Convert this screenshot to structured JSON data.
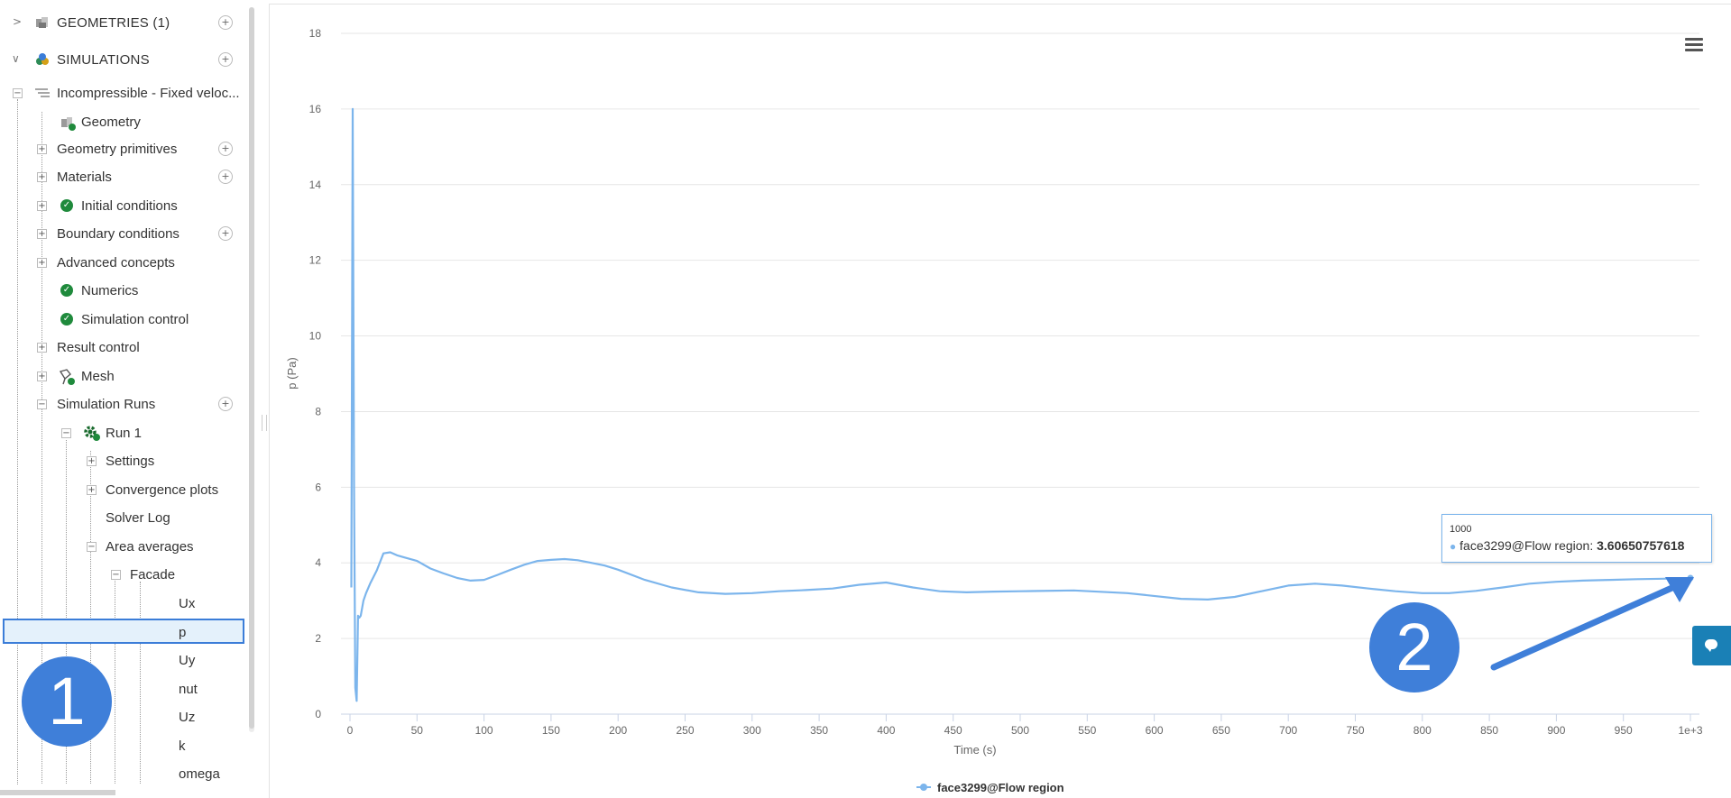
{
  "sidebar": {
    "geometries_label": "GEOMETRIES (1)",
    "simulations_label": "SIMULATIONS",
    "simulation_name": "Incompressible - Fixed veloc...",
    "items": {
      "geometry": "Geometry",
      "geometry_primitives": "Geometry primitives",
      "materials": "Materials",
      "initial_conditions": "Initial conditions",
      "boundary_conditions": "Boundary conditions",
      "advanced_concepts": "Advanced concepts",
      "numerics": "Numerics",
      "simulation_control": "Simulation control",
      "result_control": "Result control",
      "mesh": "Mesh",
      "simulation_runs": "Simulation Runs",
      "run_1": "Run 1",
      "settings": "Settings",
      "convergence_plots": "Convergence plots",
      "solver_log": "Solver Log",
      "area_averages": "Area averages",
      "facade": "Facade"
    },
    "fields": [
      "Ux",
      "p",
      "Uy",
      "nut",
      "Uz",
      "k",
      "omega"
    ],
    "selected_field": "p"
  },
  "tooltip": {
    "x_label": "1000",
    "series": "face3299@Flow region",
    "value": "3.60650757618"
  },
  "markers": {
    "m1": "1",
    "m2": "2"
  },
  "colors": {
    "series": "#7cb5ec",
    "accent": "#3b7dd8",
    "ok": "#1f8a3c",
    "chat": "#1a80b6"
  },
  "icons": [
    "chevron-right-icon",
    "chevron-down-icon",
    "geometry-cube-icon",
    "simulation-icon",
    "check-circle-icon",
    "gear-icon",
    "mesh-icon",
    "add-circle-icon",
    "menu-icon",
    "chat-icon"
  ],
  "chart_data": {
    "type": "line",
    "xlabel": "Time (s)",
    "ylabel": "p (Pa)",
    "xlim": [
      0,
      1000
    ],
    "ylim": [
      0,
      18
    ],
    "x_ticks": [
      "0",
      "50",
      "100",
      "150",
      "200",
      "250",
      "300",
      "350",
      "400",
      "450",
      "500",
      "550",
      "600",
      "650",
      "700",
      "750",
      "800",
      "850",
      "900",
      "950",
      "1e+3"
    ],
    "y_ticks": [
      "0",
      "2",
      "4",
      "6",
      "8",
      "10",
      "12",
      "14",
      "16",
      "18"
    ],
    "legend": "bottom-center",
    "grid": true,
    "series": [
      {
        "name": "face3299@Flow region",
        "x": [
          1,
          2,
          3,
          4,
          5,
          6,
          7,
          8,
          10,
          12,
          15,
          20,
          25,
          30,
          35,
          40,
          50,
          60,
          70,
          80,
          90,
          100,
          110,
          120,
          130,
          140,
          150,
          160,
          170,
          180,
          190,
          200,
          220,
          240,
          260,
          280,
          300,
          320,
          340,
          360,
          380,
          400,
          420,
          440,
          460,
          480,
          500,
          540,
          580,
          620,
          640,
          660,
          680,
          700,
          720,
          740,
          760,
          780,
          800,
          820,
          840,
          860,
          880,
          900,
          920,
          940,
          960,
          980,
          1000
        ],
        "y": [
          3.35,
          16.0,
          6.0,
          0.7,
          0.35,
          2.6,
          2.55,
          2.6,
          3.0,
          3.2,
          3.45,
          3.8,
          4.25,
          4.28,
          4.2,
          4.15,
          4.05,
          3.85,
          3.72,
          3.6,
          3.53,
          3.55,
          3.68,
          3.82,
          3.95,
          4.05,
          4.08,
          4.1,
          4.07,
          4.0,
          3.93,
          3.82,
          3.55,
          3.35,
          3.22,
          3.18,
          3.2,
          3.25,
          3.28,
          3.32,
          3.42,
          3.48,
          3.35,
          3.25,
          3.22,
          3.24,
          3.25,
          3.27,
          3.2,
          3.05,
          3.03,
          3.1,
          3.25,
          3.4,
          3.45,
          3.4,
          3.32,
          3.25,
          3.2,
          3.2,
          3.26,
          3.35,
          3.45,
          3.5,
          3.53,
          3.55,
          3.57,
          3.58,
          3.6
        ]
      }
    ]
  }
}
